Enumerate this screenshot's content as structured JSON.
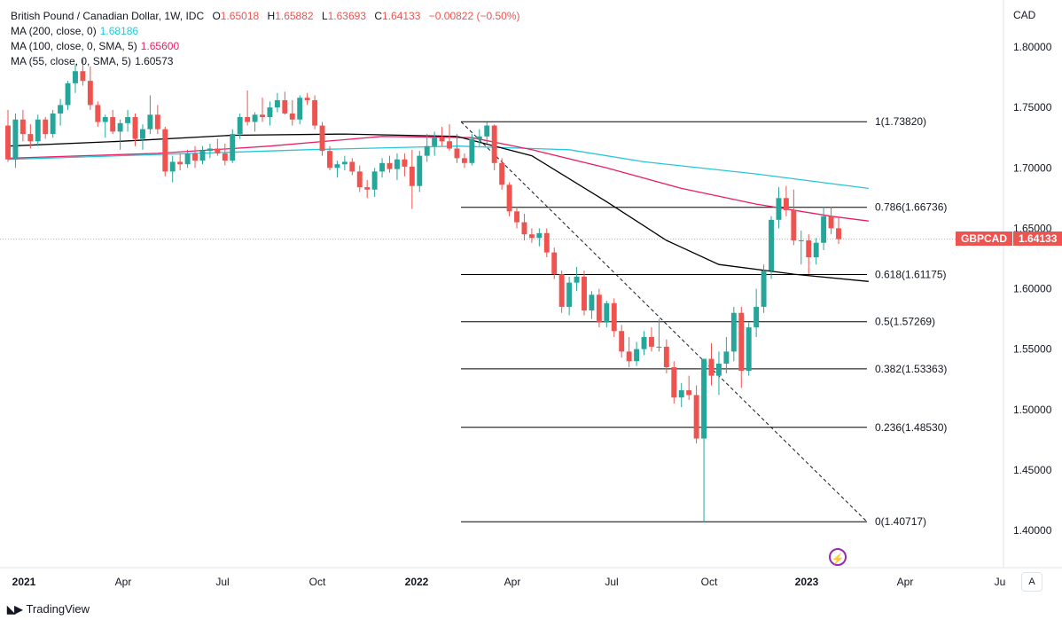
{
  "header": {
    "title": "British Pound / Canadian Dollar, 1W, IDC",
    "ohlc": {
      "open_label": "O",
      "open": "1.65018",
      "high_label": "H",
      "high": "1.65882",
      "low_label": "L",
      "low": "1.63693",
      "close_label": "C",
      "close": "1.64133",
      "change": "−0.00822 (−0.50%)"
    },
    "ma_lines": [
      {
        "label": "MA (200, close, 0)",
        "value": "1.68186",
        "color": "#26c6da"
      },
      {
        "label": "MA (100, close, 0, SMA, 5)",
        "value": "1.65600",
        "color": "#e91e63"
      },
      {
        "label": "MA (55, close, 0, SMA, 5)",
        "value": "1.60573",
        "color": "#000000"
      }
    ]
  },
  "price_scale": {
    "currency": "CAD",
    "ticks": [
      "1.80000",
      "1.75000",
      "1.70000",
      "1.65000",
      "1.60000",
      "1.55000",
      "1.50000",
      "1.45000",
      "1.40000"
    ]
  },
  "time_axis": {
    "labels": [
      "2021",
      "Apr",
      "Jul",
      "Oct",
      "2022",
      "Apr",
      "Jul",
      "Oct",
      "2023",
      "Apr",
      "Ju"
    ],
    "bold_labels": [
      "2021",
      "2022",
      "2023"
    ]
  },
  "symbol_tag": {
    "name": "GBPCAD",
    "price": "1.64133"
  },
  "auto_button": "A",
  "footer": {
    "brand": "TradingView"
  },
  "colors": {
    "up": "#26a69a",
    "down": "#ef5350",
    "fib": "#000000"
  },
  "chart_data": {
    "type": "candlestick",
    "title": "British Pound / Canadian Dollar, 1W, IDC",
    "y_axis": {
      "unit": "CAD",
      "range": [
        1.38,
        1.82
      ]
    },
    "x_range": [
      "2021-01",
      "2023-07"
    ],
    "fibonacci": {
      "start": {
        "date": "2022-03-07",
        "price": 1.7382
      },
      "end": {
        "date": "2023-03-27",
        "price": 1.40717
      },
      "levels": [
        {
          "label": "1(1.73820)",
          "price": 1.7382
        },
        {
          "label": "0.786(1.66736)",
          "price": 1.66736
        },
        {
          "label": "0.618(1.61175)",
          "price": 1.61175
        },
        {
          "label": "0.5(1.57269)",
          "price": 1.57269
        },
        {
          "label": "0.382(1.53363)",
          "price": 1.53363
        },
        {
          "label": "0.236(1.48530)",
          "price": 1.4853
        },
        {
          "label": "0(1.40717)",
          "price": 1.40717
        }
      ]
    },
    "candles": [
      [
        1.735,
        1.748,
        1.705,
        1.707
      ],
      [
        1.707,
        1.745,
        1.7,
        1.74
      ],
      [
        1.74,
        1.748,
        1.722,
        1.728
      ],
      [
        1.728,
        1.736,
        1.716,
        1.722
      ],
      [
        1.722,
        1.744,
        1.718,
        1.74
      ],
      [
        1.74,
        1.742,
        1.724,
        1.728
      ],
      [
        1.728,
        1.748,
        1.725,
        1.745
      ],
      [
        1.745,
        1.757,
        1.735,
        1.752
      ],
      [
        1.752,
        1.772,
        1.748,
        1.77
      ],
      [
        1.77,
        1.786,
        1.762,
        1.78
      ],
      [
        1.78,
        1.79,
        1.768,
        1.772
      ],
      [
        1.772,
        1.784,
        1.748,
        1.752
      ],
      [
        1.752,
        1.755,
        1.734,
        1.738
      ],
      [
        1.738,
        1.744,
        1.725,
        1.742
      ],
      [
        1.742,
        1.748,
        1.728,
        1.73
      ],
      [
        1.73,
        1.74,
        1.715,
        1.737
      ],
      [
        1.737,
        1.748,
        1.73,
        1.742
      ],
      [
        1.742,
        1.745,
        1.718,
        1.724
      ],
      [
        1.724,
        1.736,
        1.715,
        1.732
      ],
      [
        1.732,
        1.76,
        1.728,
        1.744
      ],
      [
        1.744,
        1.752,
        1.728,
        1.732
      ],
      [
        1.732,
        1.734,
        1.693,
        1.697
      ],
      [
        1.697,
        1.71,
        1.688,
        1.705
      ],
      [
        1.705,
        1.712,
        1.698,
        1.703
      ],
      [
        1.703,
        1.715,
        1.7,
        1.712
      ],
      [
        1.712,
        1.718,
        1.7,
        1.706
      ],
      [
        1.706,
        1.718,
        1.703,
        1.714
      ],
      [
        1.714,
        1.72,
        1.708,
        1.716
      ],
      [
        1.716,
        1.724,
        1.71,
        1.712
      ],
      [
        1.712,
        1.72,
        1.702,
        1.706
      ],
      [
        1.706,
        1.732,
        1.704,
        1.728
      ],
      [
        1.728,
        1.745,
        1.724,
        1.742
      ],
      [
        1.742,
        1.764,
        1.735,
        1.738
      ],
      [
        1.738,
        1.746,
        1.73,
        1.744
      ],
      [
        1.744,
        1.758,
        1.738,
        1.742
      ],
      [
        1.742,
        1.755,
        1.735,
        1.75
      ],
      [
        1.75,
        1.762,
        1.746,
        1.756
      ],
      [
        1.756,
        1.763,
        1.744,
        1.745
      ],
      [
        1.745,
        1.756,
        1.735,
        1.74
      ],
      [
        1.74,
        1.76,
        1.736,
        1.758
      ],
      [
        1.758,
        1.762,
        1.752,
        1.756
      ],
      [
        1.756,
        1.76,
        1.732,
        1.735
      ],
      [
        1.735,
        1.738,
        1.71,
        1.714
      ],
      [
        1.714,
        1.718,
        1.698,
        1.7
      ],
      [
        1.7,
        1.706,
        1.692,
        1.703
      ],
      [
        1.703,
        1.71,
        1.698,
        1.705
      ],
      [
        1.705,
        1.708,
        1.694,
        1.697
      ],
      [
        1.697,
        1.702,
        1.68,
        1.684
      ],
      [
        1.684,
        1.69,
        1.675,
        1.682
      ],
      [
        1.682,
        1.7,
        1.676,
        1.697
      ],
      [
        1.697,
        1.708,
        1.692,
        1.704
      ],
      [
        1.704,
        1.71,
        1.696,
        1.699
      ],
      [
        1.699,
        1.712,
        1.69,
        1.707
      ],
      [
        1.707,
        1.712,
        1.693,
        1.701
      ],
      [
        1.701,
        1.715,
        1.666,
        1.685
      ],
      [
        1.685,
        1.714,
        1.68,
        1.71
      ],
      [
        1.71,
        1.728,
        1.705,
        1.718
      ],
      [
        1.718,
        1.73,
        1.71,
        1.725
      ],
      [
        1.725,
        1.734,
        1.718,
        1.722
      ],
      [
        1.722,
        1.736,
        1.714,
        1.716
      ],
      [
        1.716,
        1.728,
        1.704,
        1.708
      ],
      [
        1.708,
        1.712,
        1.7,
        1.704
      ],
      [
        1.704,
        1.728,
        1.702,
        1.724
      ],
      [
        1.724,
        1.732,
        1.718,
        1.726
      ],
      [
        1.726,
        1.738,
        1.72,
        1.735
      ],
      [
        1.735,
        1.736,
        1.698,
        1.704
      ],
      [
        1.704,
        1.708,
        1.682,
        1.686
      ],
      [
        1.686,
        1.688,
        1.66,
        1.664
      ],
      [
        1.664,
        1.668,
        1.65,
        1.655
      ],
      [
        1.655,
        1.662,
        1.64,
        1.645
      ],
      [
        1.645,
        1.65,
        1.638,
        1.642
      ],
      [
        1.642,
        1.65,
        1.635,
        1.646
      ],
      [
        1.646,
        1.65,
        1.626,
        1.63
      ],
      [
        1.63,
        1.634,
        1.608,
        1.612
      ],
      [
        1.612,
        1.615,
        1.58,
        1.585
      ],
      [
        1.585,
        1.61,
        1.578,
        1.605
      ],
      [
        1.605,
        1.618,
        1.598,
        1.61
      ],
      [
        1.61,
        1.615,
        1.578,
        1.582
      ],
      [
        1.582,
        1.598,
        1.575,
        1.595
      ],
      [
        1.595,
        1.6,
        1.568,
        1.572
      ],
      [
        1.572,
        1.59,
        1.568,
        1.588
      ],
      [
        1.588,
        1.592,
        1.56,
        1.565
      ],
      [
        1.565,
        1.57,
        1.543,
        1.548
      ],
      [
        1.548,
        1.56,
        1.535,
        1.54
      ],
      [
        1.54,
        1.556,
        1.536,
        1.55
      ],
      [
        1.55,
        1.565,
        1.545,
        1.56
      ],
      [
        1.56,
        1.568,
        1.548,
        1.552
      ],
      [
        1.552,
        1.575,
        1.548,
        1.552
      ],
      [
        1.552,
        1.558,
        1.53,
        1.535
      ],
      [
        1.535,
        1.54,
        1.505,
        1.51
      ],
      [
        1.51,
        1.522,
        1.502,
        1.516
      ],
      [
        1.516,
        1.528,
        1.508,
        1.512
      ],
      [
        1.512,
        1.52,
        1.472,
        1.476
      ],
      [
        1.476,
        1.542,
        1.407,
        1.542
      ],
      [
        1.542,
        1.555,
        1.52,
        1.528
      ],
      [
        1.528,
        1.548,
        1.512,
        1.538
      ],
      [
        1.538,
        1.56,
        1.53,
        1.548
      ],
      [
        1.548,
        1.585,
        1.54,
        1.58
      ],
      [
        1.58,
        1.585,
        1.518,
        1.532
      ],
      [
        1.532,
        1.572,
        1.528,
        1.568
      ],
      [
        1.568,
        1.6,
        1.56,
        1.585
      ],
      [
        1.585,
        1.62,
        1.58,
        1.615
      ],
      [
        1.615,
        1.66,
        1.608,
        1.657
      ],
      [
        1.657,
        1.684,
        1.65,
        1.675
      ],
      [
        1.675,
        1.685,
        1.66,
        1.665
      ],
      [
        1.665,
        1.682,
        1.636,
        1.64
      ],
      [
        1.64,
        1.648,
        1.62,
        1.64
      ],
      [
        1.64,
        1.645,
        1.612,
        1.626
      ],
      [
        1.626,
        1.642,
        1.62,
        1.638
      ],
      [
        1.638,
        1.668,
        1.632,
        1.66
      ],
      [
        1.66,
        1.668,
        1.645,
        1.65
      ],
      [
        1.65,
        1.659,
        1.637,
        1.641
      ]
    ],
    "ma200": [
      [
        0,
        1.707
      ],
      [
        40,
        1.715
      ],
      [
        60,
        1.718
      ],
      [
        75,
        1.715
      ],
      [
        85,
        1.705
      ],
      [
        100,
        1.695
      ],
      [
        110,
        1.687
      ],
      [
        115,
        1.683
      ]
    ],
    "ma100": [
      [
        0,
        1.708
      ],
      [
        20,
        1.712
      ],
      [
        35,
        1.718
      ],
      [
        50,
        1.726
      ],
      [
        62,
        1.725
      ],
      [
        70,
        1.715
      ],
      [
        80,
        1.7
      ],
      [
        90,
        1.683
      ],
      [
        100,
        1.67
      ],
      [
        110,
        1.66
      ],
      [
        115,
        1.656
      ]
    ],
    "ma55": [
      [
        0,
        1.718
      ],
      [
        15,
        1.722
      ],
      [
        30,
        1.727
      ],
      [
        45,
        1.728
      ],
      [
        60,
        1.726
      ],
      [
        70,
        1.71
      ],
      [
        80,
        1.672
      ],
      [
        88,
        1.64
      ],
      [
        95,
        1.62
      ],
      [
        105,
        1.612
      ],
      [
        115,
        1.606
      ]
    ]
  }
}
